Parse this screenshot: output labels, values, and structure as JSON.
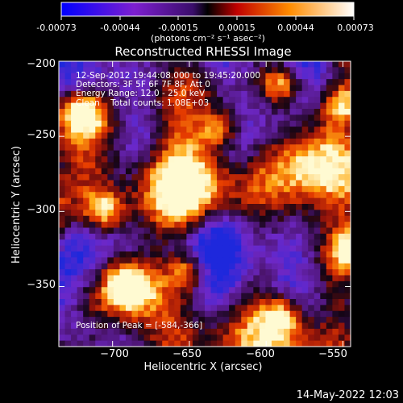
{
  "colorbar": {
    "tick_labels": [
      "-0.00073",
      "-0.00044",
      "-0.00015",
      "0.00015",
      "0.00044",
      "0.00073"
    ],
    "unit_label": "(photons cm⁻² s⁻¹ asec⁻²)",
    "colors": [
      "#0000ff",
      "#8a2be2",
      "#7b1fa2",
      "#000000",
      "#ff0000",
      "#ff9900",
      "#ffffff"
    ]
  },
  "chart_data": {
    "type": "heatmap",
    "title": "Reconstructed RHESSI Image",
    "xlabel": "Heliocentric X (arcsec)",
    "ylabel": "Heliocentric Y (arcsec)",
    "xlim": [
      -735,
      -545
    ],
    "ylim": [
      -390,
      -200
    ],
    "x_ticks": [
      -700,
      -650,
      -600,
      -550
    ],
    "x_tick_labels": [
      "−700",
      "−650",
      "−600",
      "−550"
    ],
    "y_ticks": [
      -200,
      -250,
      -300,
      -350
    ],
    "y_tick_labels": [
      "−200",
      "−250",
      "−300",
      "−350"
    ],
    "annotations": [
      "12-Sep-2012 19:44:08.000 to 19:45:20.000",
      "Detectors: 3F 5F 6F 7F 8F, Att 0",
      "Energy Range: 12.0 - 25.0 keV",
      "Clean    Total counts: 1.08E+03"
    ],
    "peak_label": "Position of Peak = [-584,-366]",
    "peak": [
      -584,
      -366
    ],
    "hot_spots": [
      {
        "x": -590,
        "y": -370
      },
      {
        "x": -590,
        "y": -215
      },
      {
        "x": -720,
        "y": -235
      },
      {
        "x": -630,
        "y": -245
      },
      {
        "x": -690,
        "y": -350
      },
      {
        "x": -550,
        "y": -230
      },
      {
        "x": -545,
        "y": -325
      },
      {
        "x": -705,
        "y": -300
      },
      {
        "x": -650,
        "y": -340
      }
    ]
  },
  "timestamp": "14-May-2022 12:03"
}
